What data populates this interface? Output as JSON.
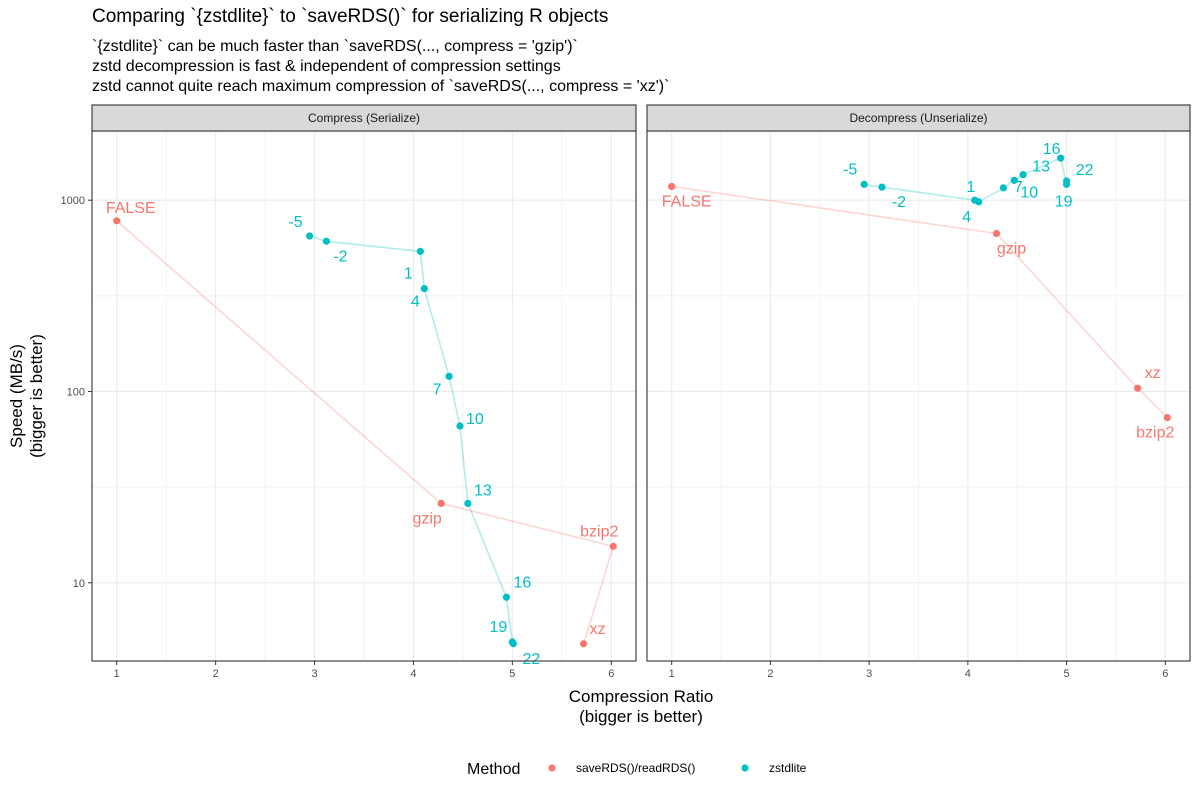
{
  "title": "Comparing `{zstdlite}` to `saveRDS()` for serializing R objects",
  "subtitle_lines": [
    "`{zstdlite}` can be much faster than `saveRDS(..., compress = 'gzip')`",
    "zstd decompression is fast & independent of compression settings",
    "zstd cannot quite reach maximum compression of `saveRDS(..., compress = 'xz')`"
  ],
  "colors": {
    "saveRDS": "#F8766D",
    "zstdlite": "#00BFC4"
  },
  "chart_data": {
    "type": "scatter",
    "xlabel": "Compression Ratio\n(bigger is better)",
    "ylabel": "Speed (MB/s)\n(bigger is better)",
    "y_scale": "log10",
    "x_ticks": [
      1,
      2,
      3,
      4,
      5,
      6
    ],
    "y_ticks": [
      10,
      100,
      1000
    ],
    "legend": {
      "title": "Method",
      "position": "bottom",
      "entries": [
        "saveRDS()/readRDS()",
        "zstdlite"
      ]
    },
    "facets": [
      {
        "strip": "Compress (Serialize)",
        "series": [
          {
            "name": "saveRDS()/readRDS()",
            "points": [
              {
                "label": "FALSE",
                "x": 1.0,
                "y": 780
              },
              {
                "label": "gzip",
                "x": 4.28,
                "y": 26
              },
              {
                "label": "bzip2",
                "x": 6.02,
                "y": 15.5
              },
              {
                "label": "xz",
                "x": 5.72,
                "y": 4.8
              }
            ]
          },
          {
            "name": "zstdlite",
            "points": [
              {
                "label": "-5",
                "x": 2.95,
                "y": 650
              },
              {
                "label": "-2",
                "x": 3.12,
                "y": 610
              },
              {
                "label": "1",
                "x": 4.07,
                "y": 540
              },
              {
                "label": "4",
                "x": 4.11,
                "y": 345
              },
              {
                "label": "7",
                "x": 4.36,
                "y": 120
              },
              {
                "label": "10",
                "x": 4.47,
                "y": 66
              },
              {
                "label": "13",
                "x": 4.55,
                "y": 26
              },
              {
                "label": "16",
                "x": 4.94,
                "y": 8.4
              },
              {
                "label": "19",
                "x": 5.0,
                "y": 4.9
              },
              {
                "label": "22",
                "x": 5.01,
                "y": 4.8
              }
            ]
          }
        ]
      },
      {
        "strip": "Decompress (Unserialize)",
        "series": [
          {
            "name": "saveRDS()/readRDS()",
            "points": [
              {
                "label": "FALSE",
                "x": 1.0,
                "y": 1180
              },
              {
                "label": "gzip",
                "x": 4.29,
                "y": 670
              },
              {
                "label": "xz",
                "x": 5.72,
                "y": 104
              },
              {
                "label": "bzip2",
                "x": 6.02,
                "y": 73
              }
            ]
          },
          {
            "name": "zstdlite",
            "points": [
              {
                "label": "-5",
                "x": 2.95,
                "y": 1210
              },
              {
                "label": "-2",
                "x": 3.13,
                "y": 1170
              },
              {
                "label": "1",
                "x": 4.07,
                "y": 1000
              },
              {
                "label": "4",
                "x": 4.11,
                "y": 980
              },
              {
                "label": "7",
                "x": 4.36,
                "y": 1160
              },
              {
                "label": "10",
                "x": 4.47,
                "y": 1270
              },
              {
                "label": "13",
                "x": 4.56,
                "y": 1360
              },
              {
                "label": "16",
                "x": 4.94,
                "y": 1660
              },
              {
                "label": "19",
                "x": 5.0,
                "y": 1210
              },
              {
                "label": "22",
                "x": 5.0,
                "y": 1260
              }
            ]
          }
        ]
      }
    ]
  }
}
